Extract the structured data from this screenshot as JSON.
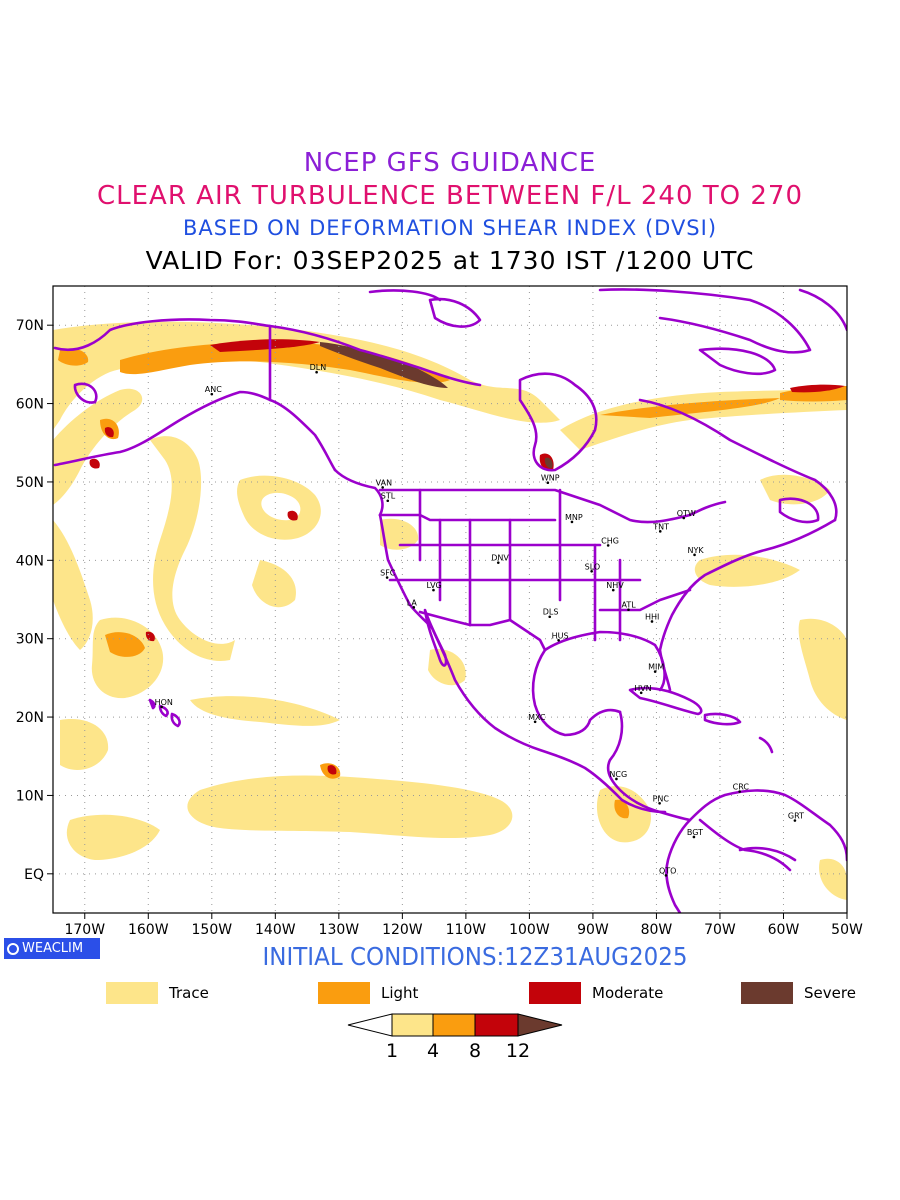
{
  "titles": {
    "line1": "NCEP GFS GUIDANCE",
    "line2": "CLEAR AIR TURBULENCE BETWEEN F/L 240 TO 270",
    "line3": "BASED ON DEFORMATION SHEAR INDEX (DVSI)",
    "line4": "VALID For: 03SEP2025 at 1730 IST /1200 UTC"
  },
  "map": {
    "projection": "lat-lon",
    "lon_range": [
      -175,
      -50
    ],
    "lat_range": [
      -5,
      75
    ],
    "grid": "dotted",
    "lat_labels": [
      "70N",
      "60N",
      "50N",
      "40N",
      "30N",
      "20N",
      "10N",
      "EQ"
    ],
    "lon_labels": [
      "170W",
      "160W",
      "150W",
      "140W",
      "130W",
      "120W",
      "110W",
      "100W",
      "90W",
      "80W",
      "70W",
      "60W",
      "50W"
    ],
    "border_color": "#9b00cc",
    "cities": [
      {
        "code": "ANC",
        "lon": -150.0,
        "lat": 61.2
      },
      {
        "code": "DLN",
        "lon": -133.5,
        "lat": 64.0
      },
      {
        "code": "VAN",
        "lon": -123.1,
        "lat": 49.3
      },
      {
        "code": "STL",
        "lon": -122.3,
        "lat": 47.6
      },
      {
        "code": "WNP",
        "lon": -97.1,
        "lat": 49.9
      },
      {
        "code": "MNP",
        "lon": -93.3,
        "lat": 44.9
      },
      {
        "code": "TNT",
        "lon": -79.4,
        "lat": 43.7
      },
      {
        "code": "OTW",
        "lon": -75.7,
        "lat": 45.4
      },
      {
        "code": "CHG",
        "lon": -87.6,
        "lat": 41.9
      },
      {
        "code": "NYK",
        "lon": -74.0,
        "lat": 40.7
      },
      {
        "code": "DNV",
        "lon": -104.9,
        "lat": 39.7
      },
      {
        "code": "SFC",
        "lon": -122.4,
        "lat": 37.8
      },
      {
        "code": "SLO",
        "lon": -90.2,
        "lat": 38.6
      },
      {
        "code": "LVG",
        "lon": -115.1,
        "lat": 36.2
      },
      {
        "code": "NHV",
        "lon": -86.8,
        "lat": 36.2
      },
      {
        "code": "LA",
        "lon": -118.2,
        "lat": 34.0
      },
      {
        "code": "DLS",
        "lon": -96.8,
        "lat": 32.8
      },
      {
        "code": "ATL",
        "lon": -84.4,
        "lat": 33.7
      },
      {
        "code": "HHI",
        "lon": -80.7,
        "lat": 32.2
      },
      {
        "code": "HUS",
        "lon": -95.4,
        "lat": 29.8
      },
      {
        "code": "MIM",
        "lon": -80.2,
        "lat": 25.8
      },
      {
        "code": "HVN",
        "lon": -82.4,
        "lat": 23.1
      },
      {
        "code": "HON",
        "lon": -157.9,
        "lat": 21.3
      },
      {
        "code": "MXC",
        "lon": -99.1,
        "lat": 19.4
      },
      {
        "code": "NCG",
        "lon": -86.3,
        "lat": 12.1
      },
      {
        "code": "CRC",
        "lon": -66.9,
        "lat": 10.5
      },
      {
        "code": "PNC",
        "lon": -79.5,
        "lat": 9.0
      },
      {
        "code": "GRT",
        "lon": -58.2,
        "lat": 6.8
      },
      {
        "code": "BGT",
        "lon": -74.1,
        "lat": 4.7
      },
      {
        "code": "QTO",
        "lon": -78.5,
        "lat": -0.2
      }
    ]
  },
  "branding": {
    "logo_text": "WEACLIM",
    "initial_conditions": "INITIAL CONDITIONS:12Z31AUG2025"
  },
  "legend": {
    "items": [
      {
        "label": "Trace",
        "color": "#fde58a"
      },
      {
        "label": "Light",
        "color": "#fa9d0f"
      },
      {
        "label": "Moderate",
        "color": "#c3030a"
      },
      {
        "label": "Severe",
        "color": "#6b3a2e"
      }
    ],
    "colorbar_ticks": [
      "1",
      "4",
      "8",
      "12"
    ]
  }
}
